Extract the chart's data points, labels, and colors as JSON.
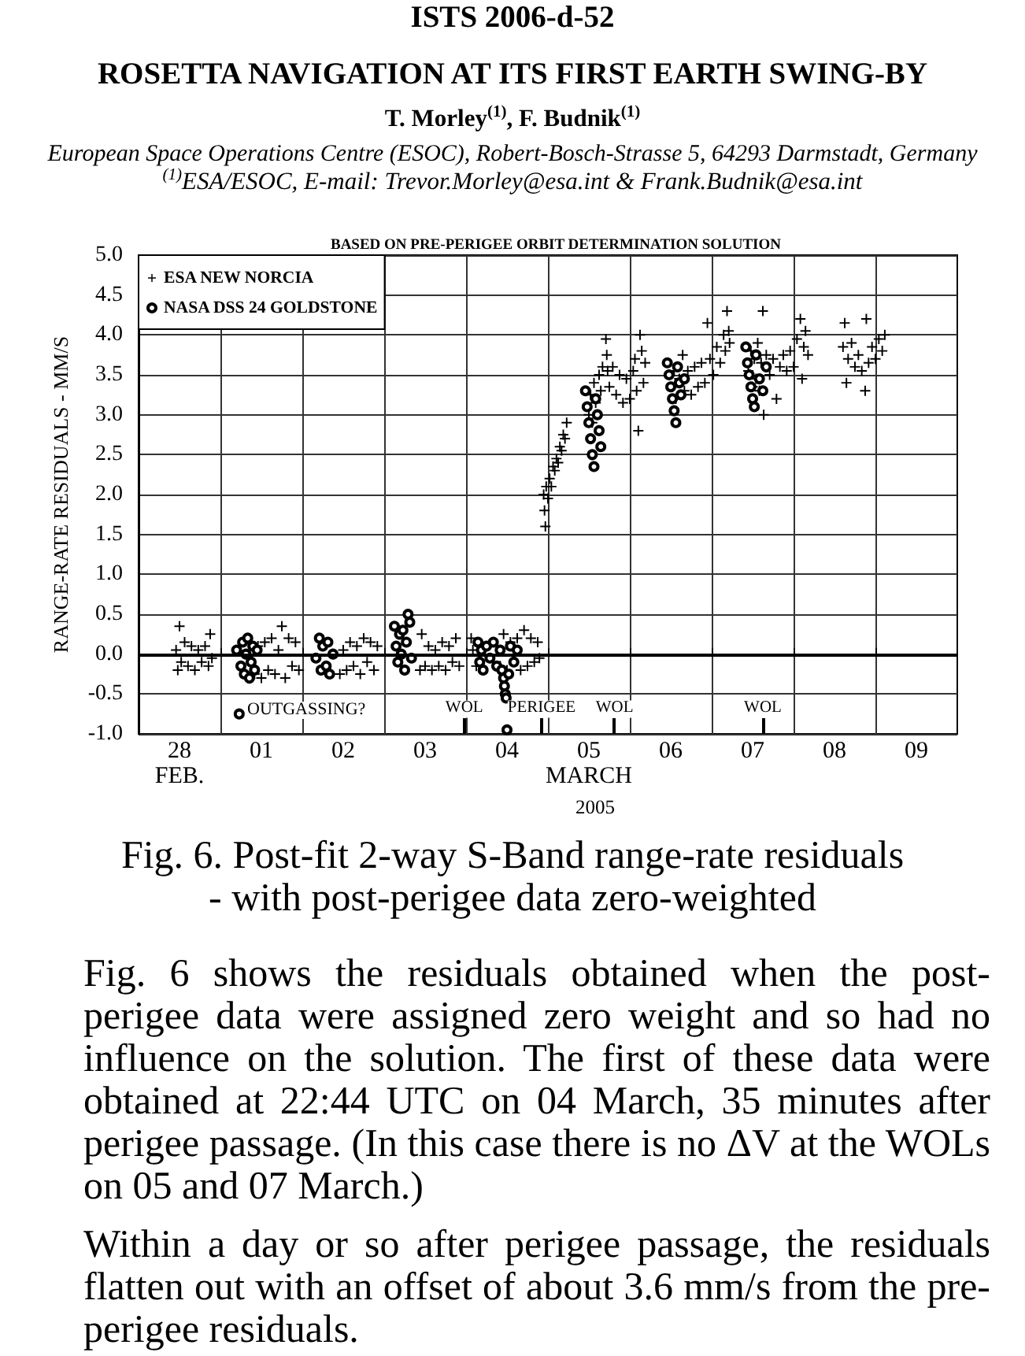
{
  "chart_data": {
    "type": "scatter",
    "title": "Fig. 6. Post-fit 2-way S-Band range-rate residuals - with post-perigee data zero-weighted",
    "subtitle": "BASED ON PRE-PERIGEE ORBIT DETERMINATION SOLUTION",
    "xlabel": "2005",
    "ylabel": "RANGE-RATE RESIDUALS - MM/S",
    "annotations": [
      "ISTS 2006-d-52",
      "ROSETTA NAVIGATION AT ITS FIRST EARTH SWING-BY",
      "T. Morley$^{(1)}$, F. Budnik$^{(1)}$",
      "European Space Operations Centre (ESOC), Robert-Bosch-Strasse 5, 64293 Darmstadt, Germany",
      "$^{(1)}$ESA/ESOC, E-mail: Trevor.Morley@esa.int & Frank.Budnik@esa.int",
      "OUTGASSING?",
      "WOL",
      "PERIGEE",
      "WOL",
      "WOL",
      "Fig. 6 shows the residuals obtained when the post-perigee data were assigned zero weight and so had no influence on the solution. The first of these data were obtained at 22:44 UTC on 04 March, 35 minutes after perigee passage. (In this case there is no ΔV at the WOLs on 05 and 07 March.)",
      "Within a day or so after perigee passage, the residuals flatten out with an offset of about 3.6 mm/s from the pre-perigee residuals."
    ],
    "xlim": [
      "2005-02-28",
      "2005-03-10"
    ],
    "xticks": [
      {
        "value": "2005-02-28T12:00",
        "label": "28\nFEB."
      },
      {
        "value": "2005-03-01",
        "label": null
      },
      {
        "value": "2005-03-01T12:00",
        "label": "01"
      },
      {
        "value": "2005-03-02",
        "label": null
      },
      {
        "value": "2005-03-02T12:00",
        "label": "02"
      },
      {
        "value": "2005-03-03",
        "label": null
      },
      {
        "value": "2005-03-03T12:00",
        "label": "03"
      },
      {
        "value": "2005-03-04",
        "label": null
      },
      {
        "value": "2005-03-04T12:00",
        "label": "04"
      },
      {
        "value": "2005-03-05",
        "label": null
      },
      {
        "value": "2005-03-05T12:00",
        "label": "05\nMARCH"
      },
      {
        "value": "2005-03-06",
        "label": null
      },
      {
        "value": "2005-03-06T12:00",
        "label": "06"
      },
      {
        "value": "2005-03-07",
        "label": null
      },
      {
        "value": "2005-03-07T12:00",
        "label": "07"
      },
      {
        "value": "2005-03-08",
        "label": null
      },
      {
        "value": "2005-03-08T12:00",
        "label": "08"
      },
      {
        "value": "2005-03-09",
        "label": null
      },
      {
        "value": "2005-03-09T12:00",
        "label": "09"
      }
    ],
    "ylim": [
      -1,
      5
    ],
    "yticks": [
      {
        "value": -1,
        "label": "-1.0"
      },
      -0.5,
      {
        "value": 0,
        "label": "0.0"
      },
      0.5,
      {
        "value": 1,
        "label": "1.0"
      },
      1.5,
      {
        "value": 2,
        "label": "2.0"
      },
      2.5,
      {
        "value": 3,
        "label": "3.0"
      },
      3.5,
      {
        "value": 4,
        "label": "4.0"
      },
      4.5,
      {
        "value": 5,
        "label": "5.0"
      }
    ],
    "grid": true,
    "legend": "top left",
    "ref_lines": [
      {
        "axis": "y",
        "value": 0
      }
    ],
    "series": [
      {
        "name": "ESA NEW NORCIA",
        "color": "#000000",
        "marker": "cross",
        "x": [
          "2005-02-28T11:00",
          "2005-02-28T11:30",
          "2005-02-28T12:00",
          "2005-02-28T12:30",
          "2005-02-28T13:30",
          "2005-02-28T14:30",
          "2005-02-28T15:30",
          "2005-02-28T16:30",
          "2005-02-28T17:30",
          "2005-02-28T18:30",
          "2005-02-28T19:30",
          "2005-02-28T20:30",
          "2005-02-28T21:00",
          "2005-02-28T21:30",
          "2005-03-01T10:00",
          "2005-03-01T11:00",
          "2005-03-01T12:00",
          "2005-03-01T13:00",
          "2005-03-01T14:00",
          "2005-03-01T15:00",
          "2005-03-01T16:00",
          "2005-03-01T17:00",
          "2005-03-01T18:00",
          "2005-03-01T19:00",
          "2005-03-01T20:00",
          "2005-03-01T21:00",
          "2005-03-01T22:00",
          "2005-03-01T23:00",
          "2005-03-02T11:00",
          "2005-03-02T12:00",
          "2005-03-02T13:00",
          "2005-03-02T14:00",
          "2005-03-02T15:00",
          "2005-03-02T16:00",
          "2005-03-02T17:00",
          "2005-03-02T18:00",
          "2005-03-02T19:00",
          "2005-03-02T20:00",
          "2005-03-02T21:00",
          "2005-03-02T22:00",
          "2005-03-03T10:30",
          "2005-03-03T11:00",
          "2005-03-03T12:00",
          "2005-03-03T13:00",
          "2005-03-03T14:00",
          "2005-03-03T15:00",
          "2005-03-03T16:00",
          "2005-03-03T17:00",
          "2005-03-03T18:00",
          "2005-03-03T19:00",
          "2005-03-03T20:00",
          "2005-03-03T21:00",
          "2005-03-03T22:00",
          "2005-03-04T02:00",
          "2005-03-04T03:00",
          "2005-03-04T01:30",
          "2005-03-04T10:00",
          "2005-03-04T11:00",
          "2005-03-04T12:00",
          "2005-03-04T13:00",
          "2005-03-04T14:00",
          "2005-03-04T15:00",
          "2005-03-04T16:00",
          "2005-03-04T17:00",
          "2005-03-04T18:00",
          "2005-03-04T19:00",
          "2005-03-04T20:00",
          "2005-03-04T21:00",
          "2005-03-04T21:30",
          "2005-03-04T22:45",
          "2005-03-04T23:00",
          "2005-03-04T23:15",
          "2005-03-04T23:30",
          "2005-03-05T00:00",
          "2005-03-05T00:30",
          "2005-03-05T01:00",
          "2005-03-05T01:30",
          "2005-03-05T02:00",
          "2005-03-05T02:30",
          "2005-03-05T03:00",
          "2005-03-05T03:30",
          "2005-03-05T04:00",
          "2005-03-05T04:30",
          "2005-03-05T05:00",
          "2005-03-05T05:30",
          "2005-03-05T12:00",
          "2005-03-05T12:30",
          "2005-03-05T13:00",
          "2005-03-05T13:30",
          "2005-03-05T14:00",
          "2005-03-05T15:00",
          "2005-03-05T15:30",
          "2005-03-05T16:00",
          "2005-03-05T17:00",
          "2005-03-05T17:15",
          "2005-03-05T17:30",
          "2005-03-05T18:00",
          "2005-03-05T19:00",
          "2005-03-05T20:00",
          "2005-03-05T21:00",
          "2005-03-05T22:00",
          "2005-03-05T23:00",
          "2005-03-06T00:00",
          "2005-03-06T01:00",
          "2005-03-06T01:30",
          "2005-03-06T02:00",
          "2005-03-06T02:30",
          "2005-03-06T03:00",
          "2005-03-06T03:30",
          "2005-03-06T04:00",
          "2005-03-06T04:30",
          "2005-03-06T12:30",
          "2005-03-06T13:00",
          "2005-03-06T13:30",
          "2005-03-06T14:30",
          "2005-03-06T15:30",
          "2005-03-06T16:00",
          "2005-03-06T17:00",
          "2005-03-06T18:00",
          "2005-03-06T19:00",
          "2005-03-06T20:00",
          "2005-03-06T21:00",
          "2005-03-06T22:00",
          "2005-03-06T22:45",
          "2005-03-06T23:30",
          "2005-03-07T00:30",
          "2005-03-07T01:30",
          "2005-03-07T02:30",
          "2005-03-07T03:30",
          "2005-03-07T04:00",
          "2005-03-07T04:30",
          "2005-03-07T05:00",
          "2005-03-07T05:15",
          "2005-03-07T10:45",
          "2005-03-07T11:30",
          "2005-03-07T12:00",
          "2005-03-07T12:30",
          "2005-03-07T13:00",
          "2005-03-07T13:30",
          "2005-03-07T14:00",
          "2005-03-07T14:30",
          "2005-03-07T15:00",
          "2005-03-07T15:15",
          "2005-03-07T16:00",
          "2005-03-07T17:00",
          "2005-03-07T18:00",
          "2005-03-07T19:00",
          "2005-03-07T20:00",
          "2005-03-07T21:00",
          "2005-03-07T22:00",
          "2005-03-07T23:00",
          "2005-03-08T00:00",
          "2005-03-08T01:00",
          "2005-03-08T02:00",
          "2005-03-08T02:30",
          "2005-03-08T03:00",
          "2005-03-08T03:30",
          "2005-03-08T04:15",
          "2005-03-08T14:30",
          "2005-03-08T15:00",
          "2005-03-08T15:30",
          "2005-03-08T16:00",
          "2005-03-08T17:00",
          "2005-03-08T18:00",
          "2005-03-08T19:00",
          "2005-03-08T20:00",
          "2005-03-08T21:00",
          "2005-03-08T21:20",
          "2005-03-08T22:00",
          "2005-03-08T23:00",
          "2005-03-09T00:00",
          "2005-03-09T01:00",
          "2005-03-09T02:00",
          "2005-03-09T02:45"
        ],
        "values": [
          0.05,
          -0.2,
          0.35,
          -0.1,
          0.15,
          -0.15,
          0.1,
          -0.2,
          0.05,
          -0.1,
          0.1,
          -0.15,
          0.25,
          -0.05,
          -0.25,
          0.1,
          -0.3,
          0.15,
          -0.2,
          0.2,
          -0.25,
          0.05,
          0.35,
          -0.3,
          0.2,
          -0.15,
          0.15,
          -0.2,
          -0.25,
          0.05,
          -0.2,
          0.15,
          -0.15,
          0.1,
          -0.25,
          0.2,
          -0.1,
          0.15,
          -0.2,
          0.1,
          -0.2,
          0.25,
          -0.15,
          0.1,
          -0.2,
          0.05,
          -0.15,
          0.15,
          -0.2,
          0.1,
          -0.1,
          0.2,
          -0.15,
          0.05,
          -0.15,
          0.2,
          -0.15,
          0.25,
          -0.2,
          0.15,
          -0.1,
          0.2,
          -0.2,
          0.3,
          -0.15,
          0.2,
          -0.1,
          0.15,
          -0.05,
          2.0,
          1.8,
          1.6,
          2.1,
          1.95,
          2.2,
          2.1,
          2.35,
          2.3,
          2.45,
          2.4,
          2.6,
          2.55,
          2.75,
          2.7,
          2.9,
          3.0,
          3.25,
          2.9,
          3.4,
          3.15,
          3.5,
          3.3,
          3.6,
          3.95,
          3.75,
          3.55,
          3.35,
          3.6,
          3.25,
          3.5,
          3.15,
          3.45,
          3.2,
          3.55,
          3.7,
          3.3,
          2.8,
          4.0,
          3.8,
          3.4,
          3.65,
          3.35,
          3.55,
          3.2,
          3.45,
          3.75,
          3.3,
          3.55,
          3.25,
          3.6,
          3.35,
          3.65,
          3.4,
          4.15,
          3.7,
          3.5,
          3.85,
          3.65,
          4.0,
          3.8,
          4.3,
          4.05,
          3.9,
          3.55,
          3.8,
          3.35,
          3.7,
          3.45,
          3.9,
          3.3,
          3.65,
          4.3,
          3.0,
          3.75,
          3.5,
          3.7,
          3.2,
          3.6,
          3.75,
          3.55,
          3.8,
          3.6,
          3.95,
          4.2,
          3.45,
          3.85,
          4.05,
          3.75,
          3.85,
          4.15,
          3.4,
          3.7,
          3.9,
          3.6,
          3.75,
          3.55,
          3.3,
          4.2,
          3.65,
          3.85,
          3.7,
          3.95,
          3.8,
          4.0
        ]
      },
      {
        "name": "NASA DSS 24 GOLDSTONE",
        "color": "#000000",
        "marker": "circle",
        "x": [
          "2005-03-01T04:45",
          "2005-03-01T05:30",
          "2005-03-01T06:00",
          "2005-03-01T06:30",
          "2005-03-01T07:00",
          "2005-03-01T07:30",
          "2005-03-01T08:00",
          "2005-03-01T08:30",
          "2005-03-01T09:00",
          "2005-03-01T09:30",
          "2005-03-01T10:00",
          "2005-03-01T10:45",
          "2005-03-02T04:00",
          "2005-03-02T05:00",
          "2005-03-02T05:30",
          "2005-03-02T06:00",
          "2005-03-02T07:00",
          "2005-03-02T07:30",
          "2005-03-02T08:00",
          "2005-03-02T09:00",
          "2005-03-03T03:00",
          "2005-03-03T03:30",
          "2005-03-03T04:00",
          "2005-03-03T04:30",
          "2005-03-03T05:00",
          "2005-03-03T05:30",
          "2005-03-03T06:00",
          "2005-03-03T06:30",
          "2005-03-03T07:00",
          "2005-03-03T07:30",
          "2005-03-03T08:00",
          "2005-03-04T03:30",
          "2005-03-04T04:00",
          "2005-03-04T04:30",
          "2005-03-04T05:00",
          "2005-03-04T06:00",
          "2005-03-04T07:00",
          "2005-03-04T08:00",
          "2005-03-04T09:00",
          "2005-03-04T10:00",
          "2005-03-04T10:30",
          "2005-03-04T11:00",
          "2005-03-04T11:15",
          "2005-03-04T11:30",
          "2005-03-04T11:45",
          "2005-03-04T12:00",
          "2005-03-04T12:30",
          "2005-03-04T13:00",
          "2005-03-04T14:00",
          "2005-03-04T15:00",
          "2005-03-05T11:00",
          "2005-03-05T11:30",
          "2005-03-05T12:00",
          "2005-03-05T12:30",
          "2005-03-05T13:00",
          "2005-03-05T13:30",
          "2005-03-05T14:00",
          "2005-03-05T14:30",
          "2005-03-05T15:00",
          "2005-03-05T15:30",
          "2005-03-06T11:00",
          "2005-03-06T11:30",
          "2005-03-06T12:00",
          "2005-03-06T12:30",
          "2005-03-06T13:00",
          "2005-03-06T13:30",
          "2005-03-06T14:00",
          "2005-03-06T14:30",
          "2005-03-06T15:00",
          "2005-03-06T16:00",
          "2005-03-07T10:00",
          "2005-03-07T10:30",
          "2005-03-07T11:00",
          "2005-03-07T11:30",
          "2005-03-07T12:00",
          "2005-03-07T12:30",
          "2005-03-07T13:00",
          "2005-03-07T14:00",
          "2005-03-07T15:00",
          "2005-03-07T16:00"
        ],
        "values": [
          0.05,
          -0.75,
          -0.15,
          0.15,
          -0.25,
          0,
          0.2,
          -0.3,
          -0.1,
          0.1,
          -0.2,
          0.05,
          -0.05,
          0.2,
          -0.2,
          0.1,
          -0.15,
          0.15,
          -0.25,
          0,
          0.35,
          0.1,
          -0.1,
          0.25,
          0,
          0.3,
          -0.2,
          0.15,
          0.5,
          0.4,
          -0.05,
          0.15,
          -0.1,
          0.05,
          -0.2,
          0.1,
          -0.05,
          0.15,
          -0.15,
          0.05,
          -0.2,
          -0.3,
          -0.4,
          -0.5,
          -0.55,
          -0.95,
          -0.25,
          0.1,
          -0.1,
          0.05,
          3.3,
          3.1,
          2.9,
          2.7,
          2.5,
          2.35,
          3.2,
          3.0,
          2.8,
          2.6,
          3.65,
          3.5,
          3.35,
          3.2,
          3.05,
          2.9,
          3.6,
          3.4,
          3.25,
          3.45,
          3.85,
          3.65,
          3.5,
          3.35,
          3.2,
          3.1,
          3.75,
          3.45,
          3.3,
          3.6
        ]
      }
    ]
  }
}
